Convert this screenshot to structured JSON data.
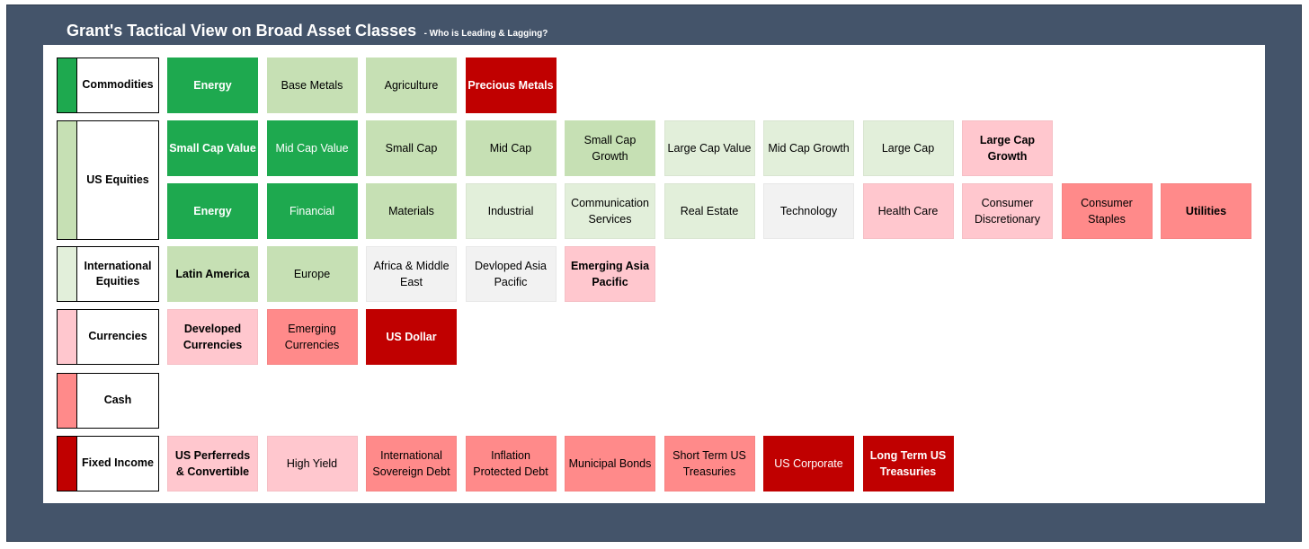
{
  "title": "Grant's Tactical View on Broad Asset Classes",
  "subtitle": "- Who is Leading & Lagging?",
  "colors": {
    "strong_lead": "#1ea94f",
    "lead": "#c6e0b4",
    "mild_lead": "#e2efda",
    "neutral": "#f2f2f2",
    "mild_lag": "#ffc7ce",
    "lag": "#ff8a8a",
    "strong_lag": "#c00000",
    "frame": "#44546a"
  },
  "categories": [
    {
      "label": "Commodities",
      "color": "#1ea94f"
    },
    {
      "label": "US Equities",
      "color": "#c6e0b4"
    },
    {
      "label": "International Equities",
      "color": "#e2efda"
    },
    {
      "label": "Currencies",
      "color": "#ffc7ce"
    },
    {
      "label": "Cash",
      "color": "#ff8a8a"
    },
    {
      "label": "Fixed Income",
      "color": "#c00000"
    }
  ],
  "rows": [
    [
      {
        "label": "Energy",
        "level": 1,
        "bold": true
      },
      {
        "label": "Base Metals",
        "level": 2,
        "bold": false
      },
      {
        "label": "Agriculture",
        "level": 2,
        "bold": false
      },
      {
        "label": "Precious Metals",
        "level": 7,
        "bold": true
      }
    ],
    [
      {
        "label": "Small Cap Value",
        "level": 1,
        "bold": true
      },
      {
        "label": "Mid Cap Value",
        "level": 1,
        "bold": false
      },
      {
        "label": "Small Cap",
        "level": 2,
        "bold": false
      },
      {
        "label": "Mid Cap",
        "level": 2,
        "bold": false
      },
      {
        "label": "Small Cap Growth",
        "level": 2,
        "bold": false
      },
      {
        "label": "Large Cap Value",
        "level": 3,
        "bold": false
      },
      {
        "label": "Mid Cap Growth",
        "level": 3,
        "bold": false
      },
      {
        "label": "Large Cap",
        "level": 3,
        "bold": false
      },
      {
        "label": "Large Cap Growth",
        "level": 5,
        "bold": true
      }
    ],
    [
      {
        "label": "Energy",
        "level": 1,
        "bold": true
      },
      {
        "label": "Financial",
        "level": 1,
        "bold": false
      },
      {
        "label": "Materials",
        "level": 2,
        "bold": false
      },
      {
        "label": "Industrial",
        "level": 3,
        "bold": false
      },
      {
        "label": "Communication Services",
        "level": 3,
        "bold": false
      },
      {
        "label": "Real Estate",
        "level": 3,
        "bold": false
      },
      {
        "label": "Technology",
        "level": 4,
        "bold": false
      },
      {
        "label": "Health Care",
        "level": 5,
        "bold": false
      },
      {
        "label": "Consumer Discretionary",
        "level": 5,
        "bold": false
      },
      {
        "label": "Consumer Staples",
        "level": 6,
        "bold": false
      },
      {
        "label": "Utilities",
        "level": 6,
        "bold": true
      }
    ],
    [
      {
        "label": "Latin America",
        "level": 2,
        "bold": true
      },
      {
        "label": "Europe",
        "level": 2,
        "bold": false
      },
      {
        "label": "Africa & Middle East",
        "level": 4,
        "bold": false
      },
      {
        "label": "Devloped Asia Pacific",
        "level": 4,
        "bold": false
      },
      {
        "label": "Emerging Asia Pacific",
        "level": 5,
        "bold": true
      }
    ],
    [
      {
        "label": "Developed Currencies",
        "level": 5,
        "bold": true
      },
      {
        "label": "Emerging Currencies",
        "level": 6,
        "bold": false
      },
      {
        "label": "US Dollar",
        "level": 7,
        "bold": true
      }
    ],
    [],
    [
      {
        "label": "US Perferreds & Convertible",
        "level": 5,
        "bold": true
      },
      {
        "label": "High Yield",
        "level": 5,
        "bold": false
      },
      {
        "label": "International Sovereign Debt",
        "level": 6,
        "bold": false
      },
      {
        "label": "Inflation Protected Debt",
        "level": 6,
        "bold": false
      },
      {
        "label": "Municipal Bonds",
        "level": 6,
        "bold": false
      },
      {
        "label": "Short Term US Treasuries",
        "level": 6,
        "bold": false
      },
      {
        "label": "US Corporate",
        "level": 7,
        "bold": false
      },
      {
        "label": "Long Term US Treasuries",
        "level": 7,
        "bold": true
      }
    ]
  ]
}
